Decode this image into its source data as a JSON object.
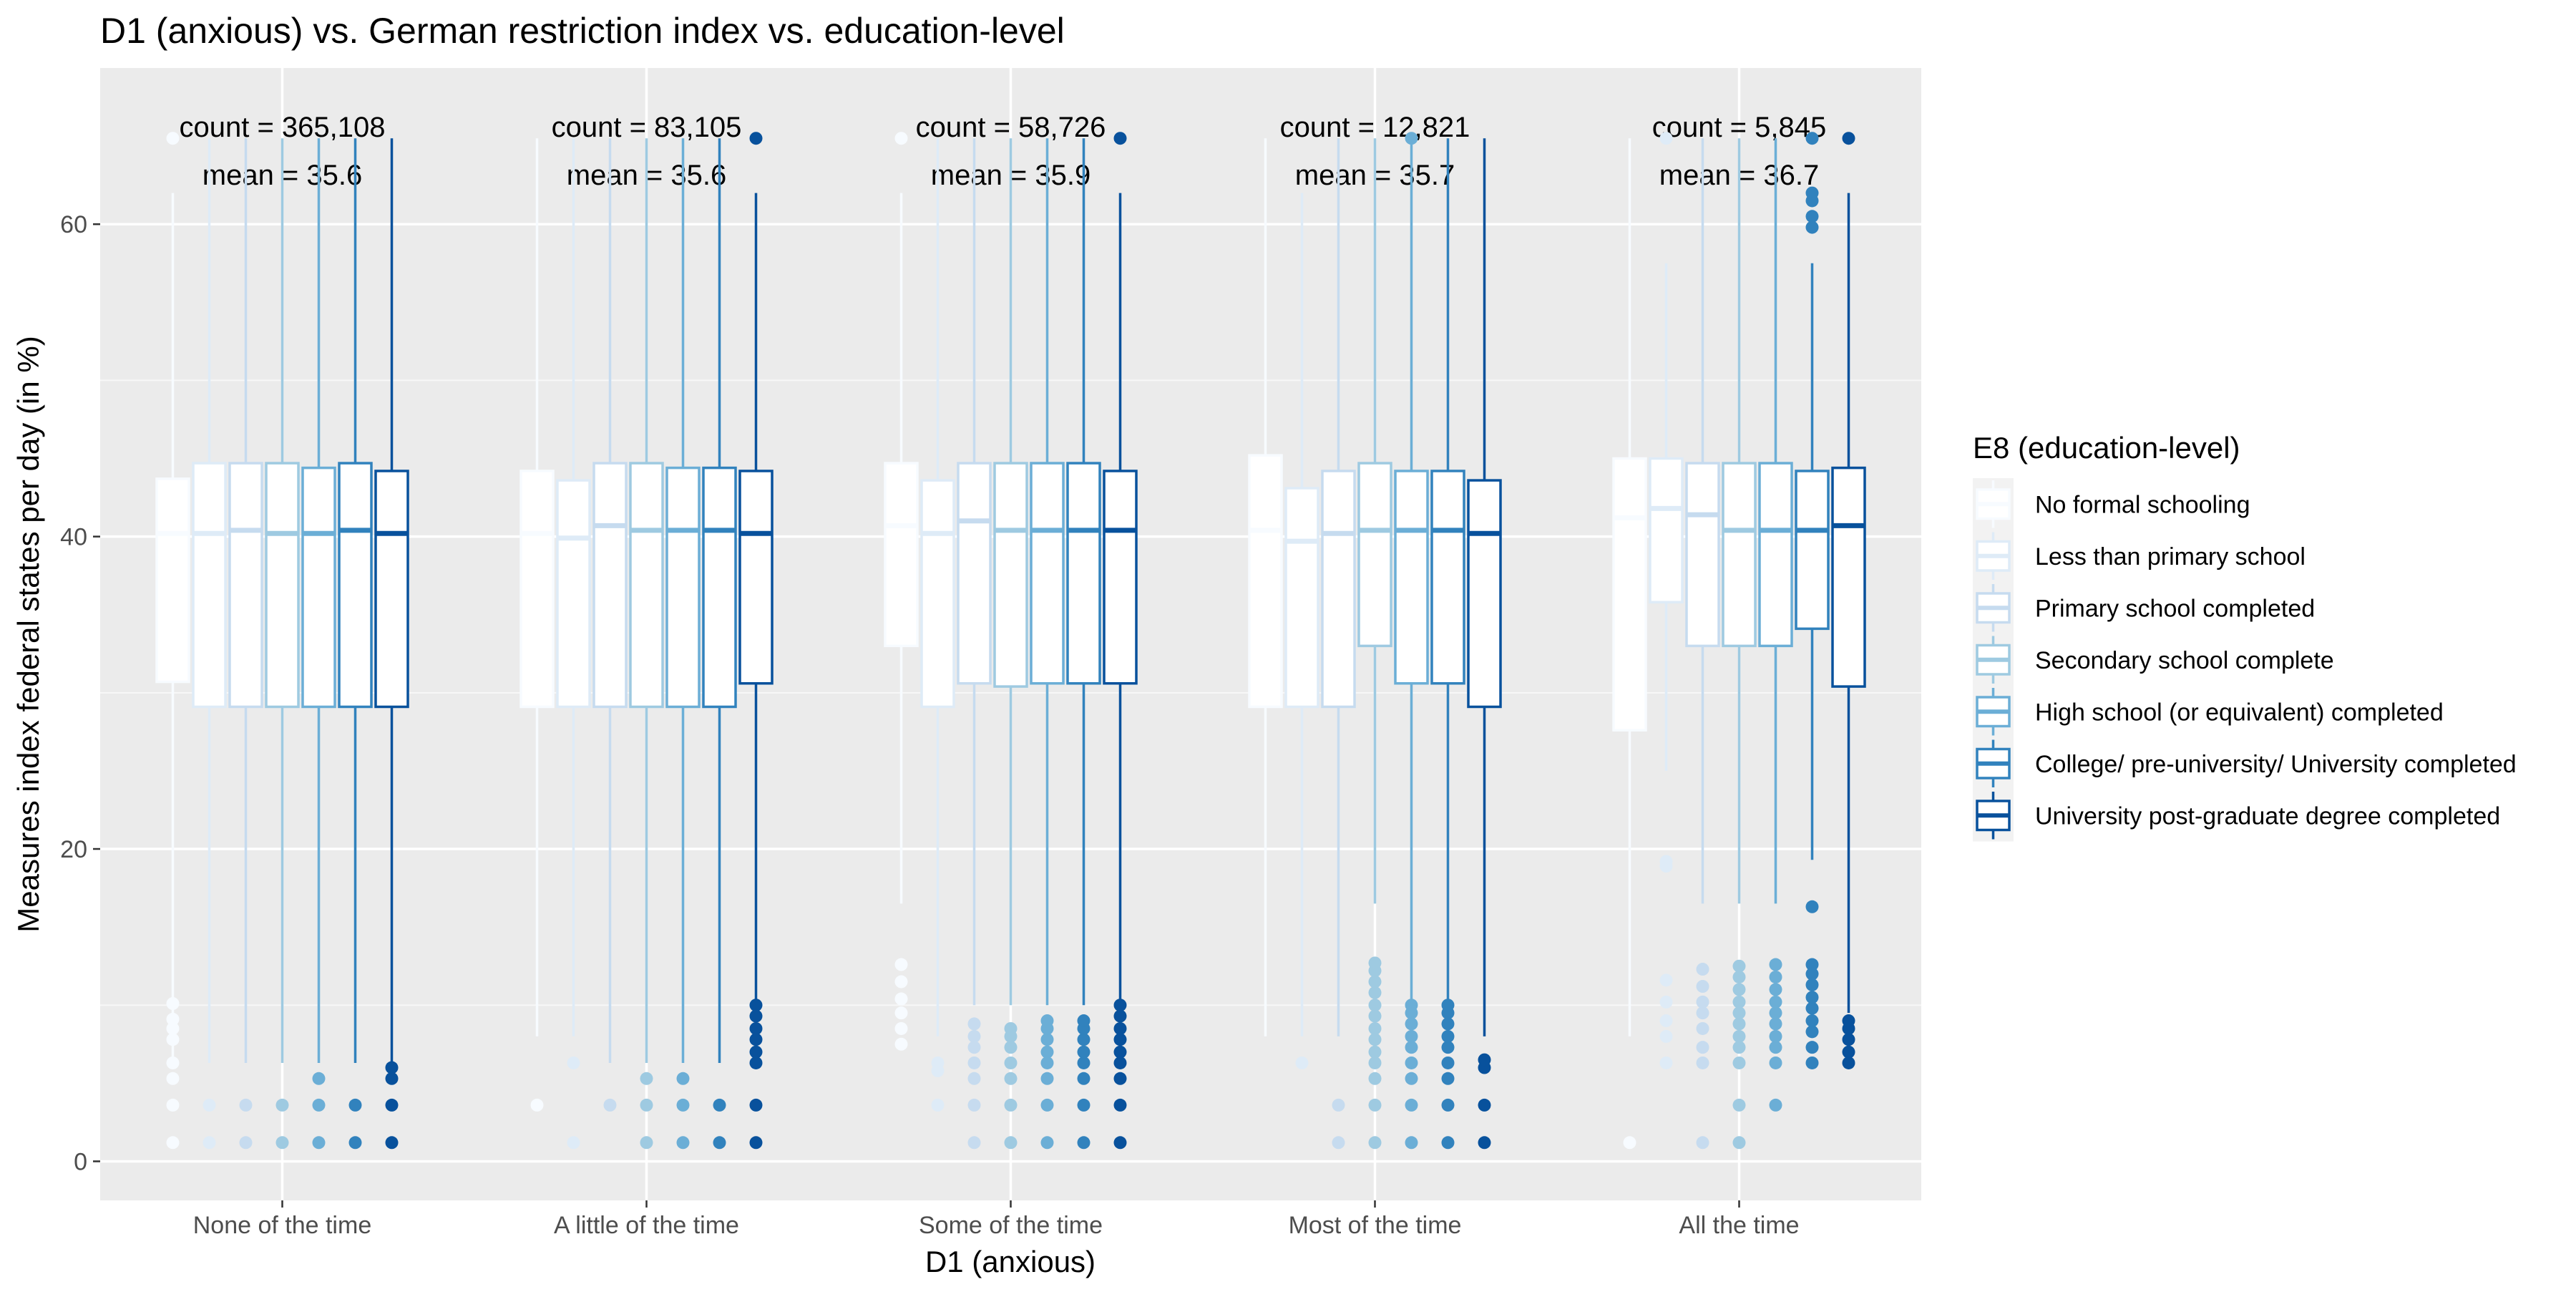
{
  "chart_data": {
    "type": "box",
    "title": "D1 (anxious) vs. German restriction index vs. education-level",
    "xlabel": "D1 (anxious)",
    "ylabel": "Measures index federal states per day (in %)",
    "ylim": [
      -2.5,
      70
    ],
    "y_ticks": [
      0,
      20,
      40,
      60
    ],
    "grid": true,
    "legend_position": "right",
    "legend_title": "E8 (education-level)",
    "categories": [
      "None of the time",
      "A little of the time",
      "Some of the time",
      "Most of the time",
      "All the time"
    ],
    "annotations": [
      {
        "count_label": "count = 365,108",
        "mean_label": "mean = 35.6"
      },
      {
        "count_label": "count = 83,105",
        "mean_label": "mean = 35.6"
      },
      {
        "count_label": "count = 58,726",
        "mean_label": "mean = 35.9"
      },
      {
        "count_label": "count = 12,821",
        "mean_label": "mean = 35.7"
      },
      {
        "count_label": "count = 5,845",
        "mean_label": "mean = 36.7"
      }
    ],
    "series": [
      {
        "name": "No formal schooling",
        "color": "#F7FBFF",
        "boxes": [
          {
            "lower_whisker": 6,
            "q1": 30.7,
            "median": 40.2,
            "q3": 43.7,
            "upper_whisker": 62,
            "outliers": [
              1.2,
              3.6,
              5.3,
              6.3,
              7.8,
              8.5,
              9.1,
              10.1,
              65.5
            ]
          },
          {
            "lower_whisker": 8,
            "q1": 29.1,
            "median": 40.2,
            "q3": 44.2,
            "upper_whisker": 65.5,
            "outliers": [
              3.6
            ]
          },
          {
            "lower_whisker": 16.5,
            "q1": 33.0,
            "median": 40.7,
            "q3": 44.7,
            "upper_whisker": 62,
            "outliers": [
              7.5,
              8.5,
              9.5,
              10.4,
              11.5,
              12.6,
              65.5
            ]
          },
          {
            "lower_whisker": 8,
            "q1": 29.1,
            "median": 40.4,
            "q3": 45.2,
            "upper_whisker": 65.5,
            "outliers": []
          },
          {
            "lower_whisker": 8,
            "q1": 27.6,
            "median": 41.2,
            "q3": 45.0,
            "upper_whisker": 65.5,
            "outliers": [
              1.2
            ]
          }
        ]
      },
      {
        "name": "Less than primary school",
        "color": "#DEEBF7",
        "boxes": [
          {
            "lower_whisker": 6.3,
            "q1": 29.1,
            "median": 40.2,
            "q3": 44.7,
            "upper_whisker": 65.5,
            "outliers": [
              1.2,
              3.6
            ]
          },
          {
            "lower_whisker": 8,
            "q1": 29.1,
            "median": 39.9,
            "q3": 43.6,
            "upper_whisker": 65.5,
            "outliers": [
              1.2,
              6.3
            ]
          },
          {
            "lower_whisker": 8,
            "q1": 29.1,
            "median": 40.2,
            "q3": 43.6,
            "upper_whisker": 65.5,
            "outliers": [
              3.6,
              5.8,
              6.3
            ]
          },
          {
            "lower_whisker": 8,
            "q1": 29.1,
            "median": 39.7,
            "q3": 43.1,
            "upper_whisker": 62,
            "outliers": [
              6.3
            ]
          },
          {
            "lower_whisker": 25,
            "q1": 35.8,
            "median": 41.8,
            "q3": 45.0,
            "upper_whisker": 57.5,
            "outliers": [
              6.3,
              8.0,
              9.0,
              10.2,
              11.6,
              18.9,
              19.2,
              65.5
            ]
          }
        ]
      },
      {
        "name": "Primary school completed",
        "color": "#C6DBEF",
        "boxes": [
          {
            "lower_whisker": 6.3,
            "q1": 29.1,
            "median": 40.4,
            "q3": 44.7,
            "upper_whisker": 65.5,
            "outliers": [
              1.2,
              3.6
            ]
          },
          {
            "lower_whisker": 6.3,
            "q1": 29.1,
            "median": 40.7,
            "q3": 44.7,
            "upper_whisker": 65.5,
            "outliers": [
              3.6
            ]
          },
          {
            "lower_whisker": 10,
            "q1": 30.6,
            "median": 41.0,
            "q3": 44.7,
            "upper_whisker": 65.5,
            "outliers": [
              1.2,
              3.6,
              5.3,
              6.3,
              7.3,
              8.0,
              8.8
            ]
          },
          {
            "lower_whisker": 8,
            "q1": 29.1,
            "median": 40.2,
            "q3": 44.2,
            "upper_whisker": 65.5,
            "outliers": [
              1.2,
              3.6
            ]
          },
          {
            "lower_whisker": 16.5,
            "q1": 33.0,
            "median": 41.4,
            "q3": 44.7,
            "upper_whisker": 65.5,
            "outliers": [
              1.2,
              6.3,
              7.3,
              8.5,
              9.5,
              10.2,
              11.2,
              12.3
            ]
          }
        ]
      },
      {
        "name": "Secondary school complete",
        "color": "#9ECAE1",
        "boxes": [
          {
            "lower_whisker": 6.3,
            "q1": 29.1,
            "median": 40.2,
            "q3": 44.7,
            "upper_whisker": 65.5,
            "outliers": [
              1.2,
              3.6
            ]
          },
          {
            "lower_whisker": 6.3,
            "q1": 29.1,
            "median": 40.4,
            "q3": 44.7,
            "upper_whisker": 65.5,
            "outliers": [
              1.2,
              3.6,
              5.3
            ]
          },
          {
            "lower_whisker": 10,
            "q1": 30.4,
            "median": 40.4,
            "q3": 44.7,
            "upper_whisker": 65.5,
            "outliers": [
              1.2,
              3.6,
              5.3,
              6.3,
              7.3,
              8.0,
              8.5
            ]
          },
          {
            "lower_whisker": 16.5,
            "q1": 33.0,
            "median": 40.4,
            "q3": 44.7,
            "upper_whisker": 65.5,
            "outliers": [
              1.2,
              3.6,
              5.3,
              6.3,
              7.0,
              7.8,
              8.5,
              9.3,
              10.0,
              10.8,
              11.5,
              12.2,
              12.7
            ]
          },
          {
            "lower_whisker": 16.5,
            "q1": 33.0,
            "median": 40.4,
            "q3": 44.7,
            "upper_whisker": 65.5,
            "outliers": [
              1.2,
              3.6,
              6.3,
              7.3,
              8.0,
              8.8,
              9.5,
              10.2,
              11.0,
              11.8,
              12.5
            ]
          }
        ]
      },
      {
        "name": "High school (or equivalent) completed",
        "color": "#6BAED6",
        "boxes": [
          {
            "lower_whisker": 6.3,
            "q1": 29.1,
            "median": 40.2,
            "q3": 44.4,
            "upper_whisker": 65.5,
            "outliers": [
              1.2,
              3.6,
              5.3
            ]
          },
          {
            "lower_whisker": 6.3,
            "q1": 29.1,
            "median": 40.4,
            "q3": 44.4,
            "upper_whisker": 65.5,
            "outliers": [
              1.2,
              3.6,
              5.3
            ]
          },
          {
            "lower_whisker": 10,
            "q1": 30.6,
            "median": 40.4,
            "q3": 44.7,
            "upper_whisker": 65.5,
            "outliers": [
              1.2,
              3.6,
              5.3,
              6.3,
              7.0,
              7.8,
              8.5,
              9.0
            ]
          },
          {
            "lower_whisker": 10.2,
            "q1": 30.6,
            "median": 40.4,
            "q3": 44.2,
            "upper_whisker": 65.5,
            "outliers": [
              1.2,
              3.6,
              5.3,
              6.3,
              7.3,
              8.0,
              8.8,
              9.5,
              10.0,
              65.5
            ]
          },
          {
            "lower_whisker": 16.5,
            "q1": 33.0,
            "median": 40.4,
            "q3": 44.7,
            "upper_whisker": 65.5,
            "outliers": [
              3.6,
              6.3,
              7.3,
              8.0,
              8.8,
              9.5,
              10.2,
              11.0,
              11.8,
              12.6
            ]
          }
        ]
      },
      {
        "name": "College/ pre-university/ University completed",
        "color": "#3182BD",
        "boxes": [
          {
            "lower_whisker": 6.3,
            "q1": 29.1,
            "median": 40.4,
            "q3": 44.7,
            "upper_whisker": 65.5,
            "outliers": [
              1.2,
              3.6
            ]
          },
          {
            "lower_whisker": 6.3,
            "q1": 29.1,
            "median": 40.4,
            "q3": 44.4,
            "upper_whisker": 65.5,
            "outliers": [
              1.2,
              3.6
            ]
          },
          {
            "lower_whisker": 10,
            "q1": 30.6,
            "median": 40.4,
            "q3": 44.7,
            "upper_whisker": 65.5,
            "outliers": [
              1.2,
              3.6,
              5.3,
              6.3,
              7.0,
              7.8,
              8.5,
              9.0
            ]
          },
          {
            "lower_whisker": 10.2,
            "q1": 30.6,
            "median": 40.4,
            "q3": 44.2,
            "upper_whisker": 65.5,
            "outliers": [
              1.2,
              3.6,
              5.3,
              6.3,
              7.3,
              8.0,
              8.8,
              9.5,
              10.0
            ]
          },
          {
            "lower_whisker": 19.3,
            "q1": 34.1,
            "median": 40.4,
            "q3": 44.2,
            "upper_whisker": 57.5,
            "outliers": [
              6.3,
              7.3,
              8.3,
              9.0,
              9.8,
              10.5,
              11.3,
              12.0,
              12.6,
              16.3,
              59.8,
              60.5,
              61.5,
              62.0,
              65.5
            ]
          }
        ]
      },
      {
        "name": "University post-graduate degree completed",
        "color": "#08519C",
        "boxes": [
          {
            "lower_whisker": 6.3,
            "q1": 29.1,
            "median": 40.2,
            "q3": 44.2,
            "upper_whisker": 65.5,
            "outliers": [
              1.2,
              3.6,
              5.3,
              6.0
            ]
          },
          {
            "lower_whisker": 10.4,
            "q1": 30.6,
            "median": 40.2,
            "q3": 44.2,
            "upper_whisker": 62,
            "outliers": [
              1.2,
              3.6,
              6.3,
              7.0,
              7.8,
              8.5,
              9.3,
              10.0,
              65.5
            ]
          },
          {
            "lower_whisker": 10.4,
            "q1": 30.6,
            "median": 40.4,
            "q3": 44.2,
            "upper_whisker": 62,
            "outliers": [
              1.2,
              3.6,
              5.3,
              6.3,
              7.0,
              7.8,
              8.5,
              9.3,
              10.0,
              65.5
            ]
          },
          {
            "lower_whisker": 8,
            "q1": 29.1,
            "median": 40.2,
            "q3": 43.6,
            "upper_whisker": 65.5,
            "outliers": [
              1.2,
              3.6,
              6.0,
              6.5
            ]
          },
          {
            "lower_whisker": 9.5,
            "q1": 30.4,
            "median": 40.7,
            "q3": 44.4,
            "upper_whisker": 62,
            "outliers": [
              6.3,
              7.0,
              7.8,
              8.5,
              9.0,
              65.5
            ]
          }
        ]
      }
    ]
  }
}
